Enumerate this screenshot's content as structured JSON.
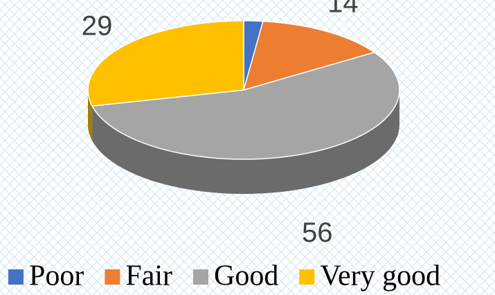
{
  "chart_data": {
    "type": "pie",
    "categories": [
      "Poor",
      "Fair",
      "Good",
      "Very good"
    ],
    "values": [
      2,
      14,
      56,
      29
    ],
    "colors": [
      "#4472c4",
      "#ed7d31",
      "#a5a5a5",
      "#ffc000"
    ],
    "legend": "bottom"
  }
}
